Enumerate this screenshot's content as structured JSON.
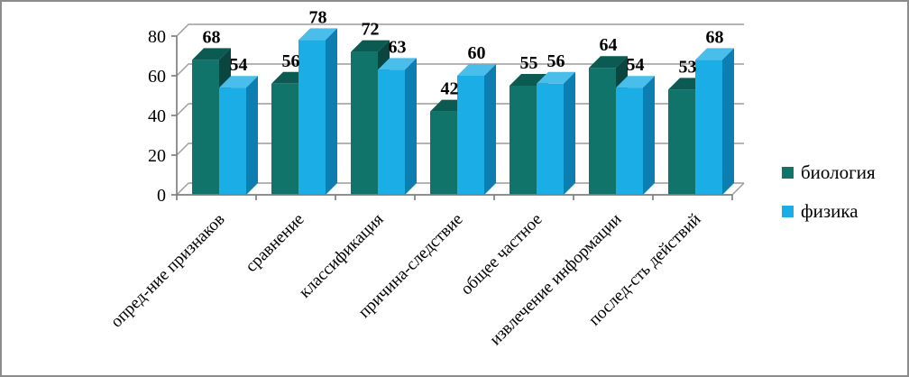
{
  "frame": {
    "background": "#FFFFFF",
    "border_color": "#8C8C8C"
  },
  "chart_data": {
    "type": "bar",
    "style": "3d-clustered-column",
    "title": "",
    "xlabel": "",
    "ylabel": "",
    "categories": [
      "опред-ние признаков",
      "сравнение",
      "классификация",
      "причина-следствие",
      "общее частное",
      "извлечение информации",
      "послед-сть действий"
    ],
    "series": [
      {
        "name": "биология",
        "values": [
          68,
          56,
          72,
          42,
          55,
          64,
          53
        ],
        "color": "#10746B",
        "color_top": "#0C5B53",
        "color_side": "#0A453F"
      },
      {
        "name": "физика",
        "values": [
          54,
          78,
          63,
          60,
          56,
          54,
          68
        ],
        "color": "#1BADE6",
        "color_top": "#49BEEA",
        "color_side": "#0C7EB2"
      }
    ],
    "y_axis": {
      "min": 0,
      "max": 80,
      "step": 20,
      "tick_labels": [
        "0",
        "20",
        "40",
        "60",
        "80"
      ]
    },
    "x_axis": {
      "label_rotation_deg": 45
    },
    "grid": "on",
    "data_labels": "on",
    "legend_position": "right",
    "grid_color": "#9C9C9C",
    "axis_color": "#7F7F7F",
    "text_color": "#000000"
  }
}
